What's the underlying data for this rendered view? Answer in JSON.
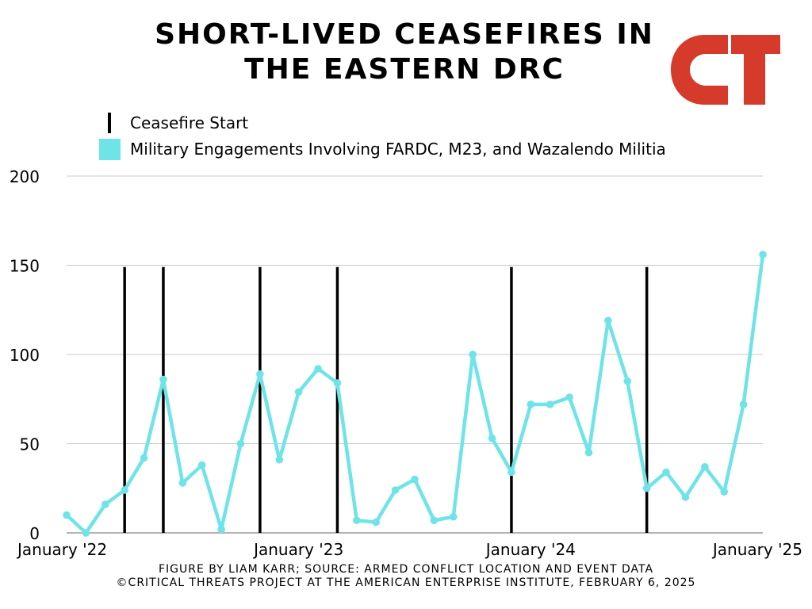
{
  "title_line1": "SHORT-LIVED CEASEFIRES IN",
  "title_line2": "THE EASTERN DRC",
  "logo_text": "CT",
  "legend": {
    "ceasefire_label": "Ceasefire Start",
    "engagements_label": "Military Engagements Involving FARDC, M23, and Wazalendo Militia"
  },
  "footer": {
    "line1": "FIGURE BY LIAM KARR; SOURCE: ARMED CONFLICT LOCATION AND EVENT DATA",
    "line2": "©CRITICAL THREATS PROJECT AT THE AMERICAN ENTERPRISE INSTITUTE, FEBRUARY 6, 2025"
  },
  "colors": {
    "line": "#6fe4e8",
    "ceasefire": "#000000",
    "logo": "#d63a2a",
    "grid": "#c8c8c8"
  },
  "chart_data": {
    "type": "line",
    "ylim": [
      0,
      200
    ],
    "yticks": [
      0,
      50,
      100,
      150,
      200
    ],
    "xlim": [
      0,
      36
    ],
    "xticks": [
      {
        "label": "January '22",
        "x": 0
      },
      {
        "label": "January '23",
        "x": 12
      },
      {
        "label": "January '24",
        "x": 24
      },
      {
        "label": "January '25",
        "x": 36
      }
    ],
    "grid": true,
    "series": [
      {
        "name": "Military Engagements Involving FARDC, M23, and Wazalendo Militia",
        "values": [
          10,
          0,
          16,
          24,
          42,
          86,
          28,
          38,
          2,
          50,
          89,
          41,
          79,
          92,
          84,
          7,
          6,
          24,
          30,
          7,
          9,
          100,
          53,
          34,
          72,
          72,
          76,
          45,
          119,
          85,
          25,
          34,
          20,
          37,
          23,
          72,
          156
        ]
      }
    ],
    "ceasefire_starts": [
      3,
      5,
      10,
      14,
      23,
      30
    ],
    "ceasefire_line_top_value": 149
  }
}
